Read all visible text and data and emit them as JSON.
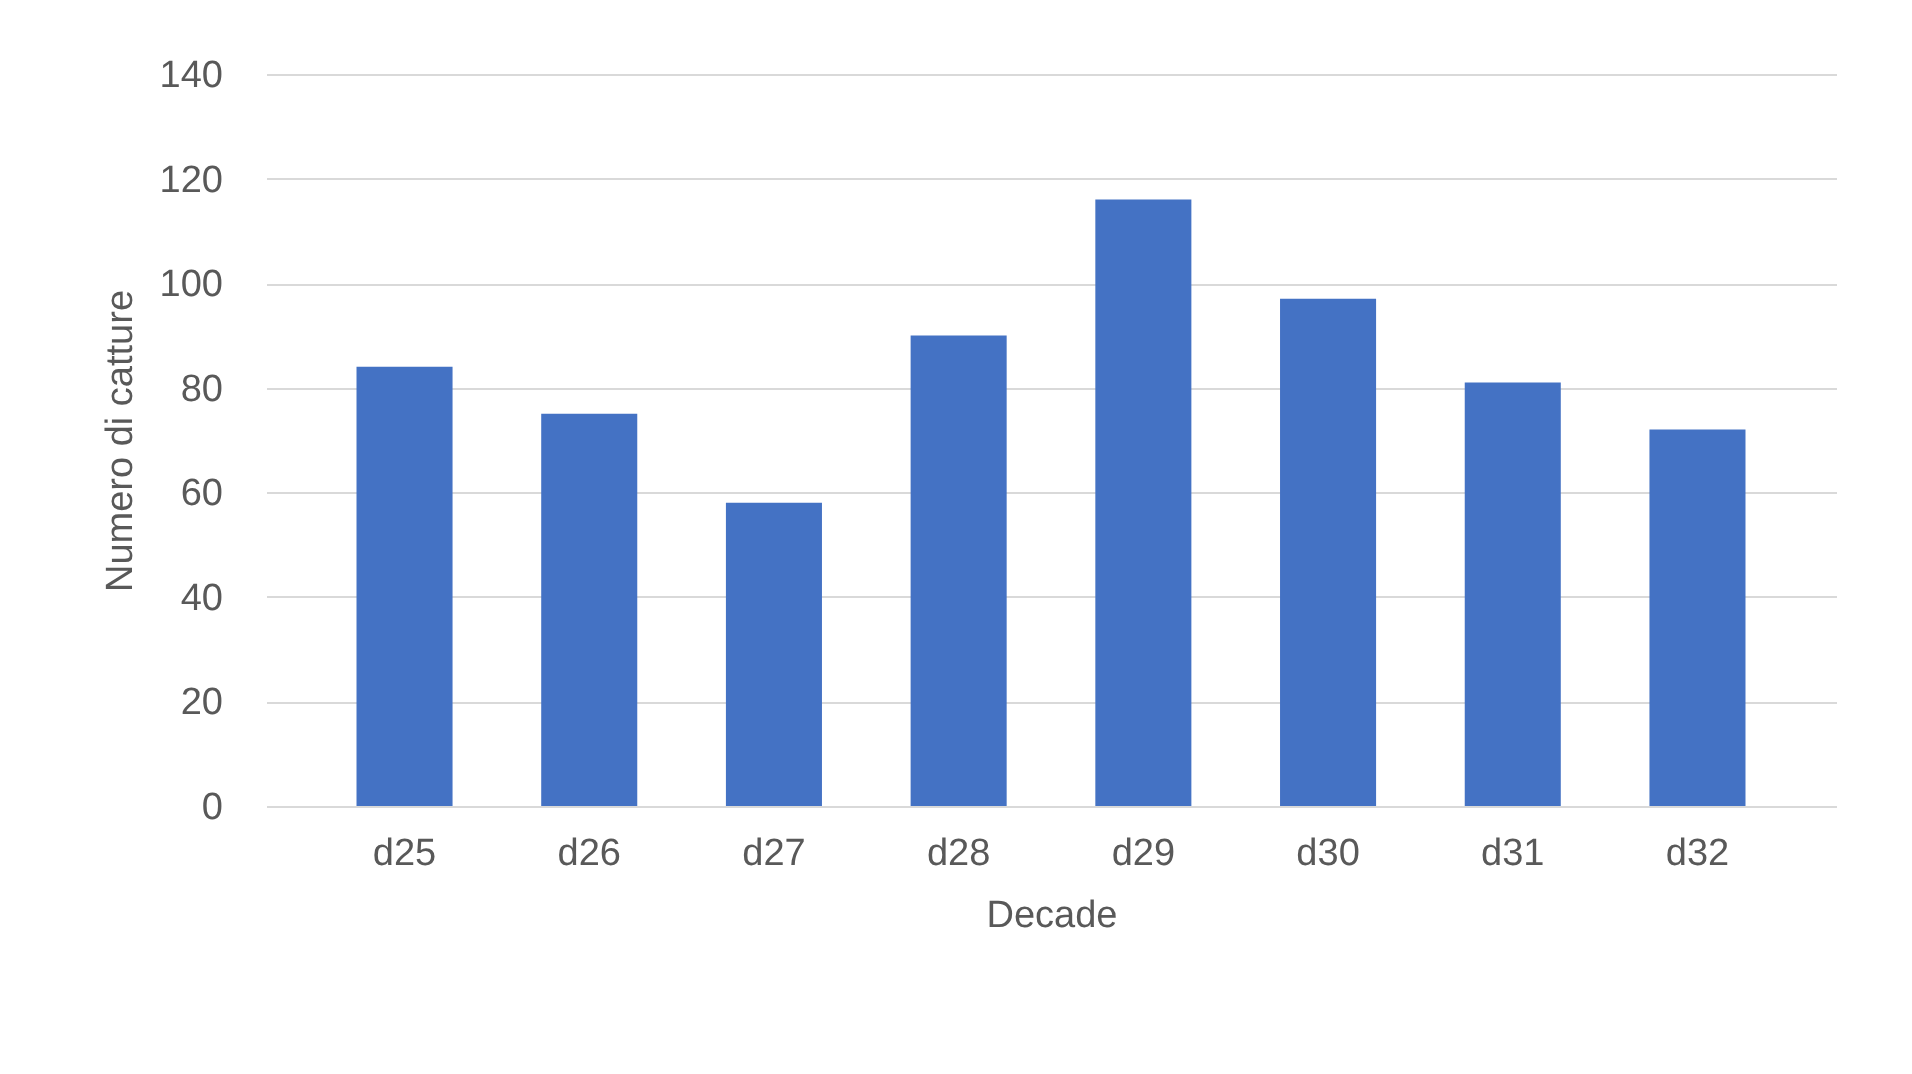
{
  "chart_data": {
    "type": "bar",
    "xlabel": "Decade",
    "ylabel": "Numero di catture",
    "categories": [
      "d25",
      "d26",
      "d27",
      "d28",
      "d29",
      "d30",
      "d31",
      "d32"
    ],
    "values": [
      84,
      75,
      58,
      90,
      116,
      97,
      81,
      72
    ],
    "color": "#4472c4",
    "ylim": [
      0,
      140
    ],
    "yticks": [
      0,
      20,
      40,
      60,
      80,
      100,
      120,
      140
    ],
    "grid": "y"
  }
}
